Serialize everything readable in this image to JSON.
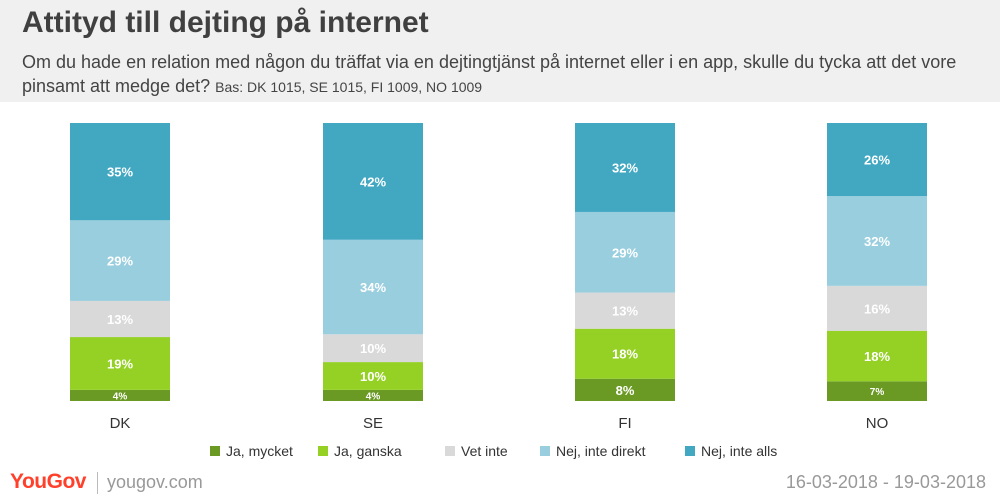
{
  "header": {
    "title": "Attityd till dejting på internet",
    "subtitle": "Om du hade en relation med någon du träffat via en dejtingtjänst på internet eller i en app, skulle du tycka att det vore pinsamt att medge det?",
    "base_note": "Bas: DK 1015, SE 1015, FI 1009, NO 1009"
  },
  "chart_data": {
    "type": "bar",
    "stacked": true,
    "categories": [
      "DK",
      "SE",
      "FI",
      "NO"
    ],
    "series": [
      {
        "name": "Ja, mycket",
        "color": "#6a9a23",
        "values": [
          4,
          4,
          8,
          7
        ]
      },
      {
        "name": "Ja, ganska",
        "color": "#95d125",
        "values": [
          19,
          10,
          18,
          18
        ]
      },
      {
        "name": "Vet inte",
        "color": "#d9d9d9",
        "values": [
          13,
          10,
          13,
          16
        ]
      },
      {
        "name": "Nej, inte direkt",
        "color": "#99cedf",
        "values": [
          29,
          34,
          29,
          32
        ]
      },
      {
        "name": "Nej, inte alls",
        "color": "#42a8c2",
        "values": [
          35,
          42,
          32,
          26
        ]
      }
    ],
    "labels": [
      [
        "4%",
        "4%",
        "8%",
        "7%"
      ],
      [
        "19%",
        "10%",
        "18%",
        "18%"
      ],
      [
        "13%",
        "10%",
        "13%",
        "16%"
      ],
      [
        "29%",
        "34%",
        "29%",
        "32%"
      ],
      [
        "35%",
        "42%",
        "32%",
        "26%"
      ]
    ],
    "unit": "%",
    "legend_position": "bottom"
  },
  "footer": {
    "logo": "YouGov",
    "site": "yougov.com",
    "date": "16-03-2018 - 19-03-2018"
  }
}
